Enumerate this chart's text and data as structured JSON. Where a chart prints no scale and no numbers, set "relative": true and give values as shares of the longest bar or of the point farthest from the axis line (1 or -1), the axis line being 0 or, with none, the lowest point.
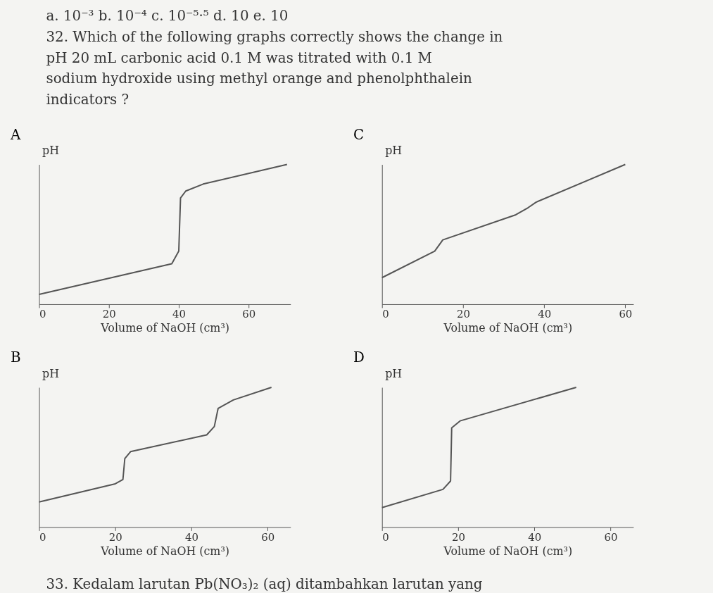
{
  "chart_data": [
    {
      "type": "other",
      "annotations": [
        "a. 10⁻³    b. 10⁻⁴    c. 10⁻⁵·⁵    d. 10    e. 10",
        "32. Which of the following graphs correctly shows the change in",
        "pH 20 mL carbonic acid 0.1 M was titrated with 0.1 M",
        "sodium hydroxide using methyl orange and phenolphthalein",
        "indicators ?"
      ]
    },
    {
      "type": "line",
      "title": "A",
      "xlabel": "Volume of NaOH (cm³)",
      "ylabel": "pH",
      "relative": true,
      "grid": false,
      "xlim": [
        0,
        72
      ],
      "xticks": [
        0,
        20,
        40,
        60
      ],
      "series": [
        {
          "color": "#555555",
          "x": [
            0,
            38,
            40,
            40.5,
            42,
            47,
            71
          ],
          "values": [
            0.07,
            0.29,
            0.38,
            0.76,
            0.81,
            0.86,
            1
          ]
        }
      ]
    },
    {
      "type": "line",
      "title": "C",
      "xlabel": "Volume of NaOH (cm³)",
      "ylabel": "pH",
      "relative": true,
      "grid": false,
      "xlim": [
        0,
        62
      ],
      "xticks": [
        0,
        20,
        40,
        60
      ],
      "series": [
        {
          "color": "#555555",
          "x": [
            0,
            13,
            15,
            33,
            36,
            38,
            60
          ],
          "values": [
            0.19,
            0.38,
            0.46,
            0.64,
            0.69,
            0.73,
            1
          ]
        }
      ]
    },
    {
      "type": "line",
      "title": "B",
      "xlabel": "Volume of NaOH (cm³)",
      "ylabel": "pH",
      "relative": true,
      "grid": false,
      "xlim": [
        0,
        66
      ],
      "xticks": [
        0,
        20,
        40,
        60
      ],
      "series": [
        {
          "color": "#555555",
          "x": [
            0,
            20,
            22,
            22.5,
            24,
            44,
            46,
            47,
            51,
            61
          ],
          "values": [
            0.18,
            0.31,
            0.34,
            0.49,
            0.54,
            0.66,
            0.72,
            0.85,
            0.91,
            1
          ]
        }
      ]
    },
    {
      "type": "line",
      "title": "D",
      "xlabel": "Volume of NaOH (cm³)",
      "ylabel": "pH",
      "relative": true,
      "grid": false,
      "xlim": [
        0,
        66
      ],
      "xticks": [
        0,
        20,
        40,
        60
      ],
      "series": [
        {
          "color": "#555555",
          "x": [
            0,
            16,
            18,
            18.3,
            20.5,
            51
          ],
          "values": [
            0.14,
            0.27,
            0.33,
            0.71,
            0.76,
            1
          ]
        }
      ]
    },
    {
      "type": "other",
      "annotations": [
        "33. Kedalam larutan Pb(NO₃)₂ (aq) ditambahkan larutan yang"
      ]
    }
  ]
}
